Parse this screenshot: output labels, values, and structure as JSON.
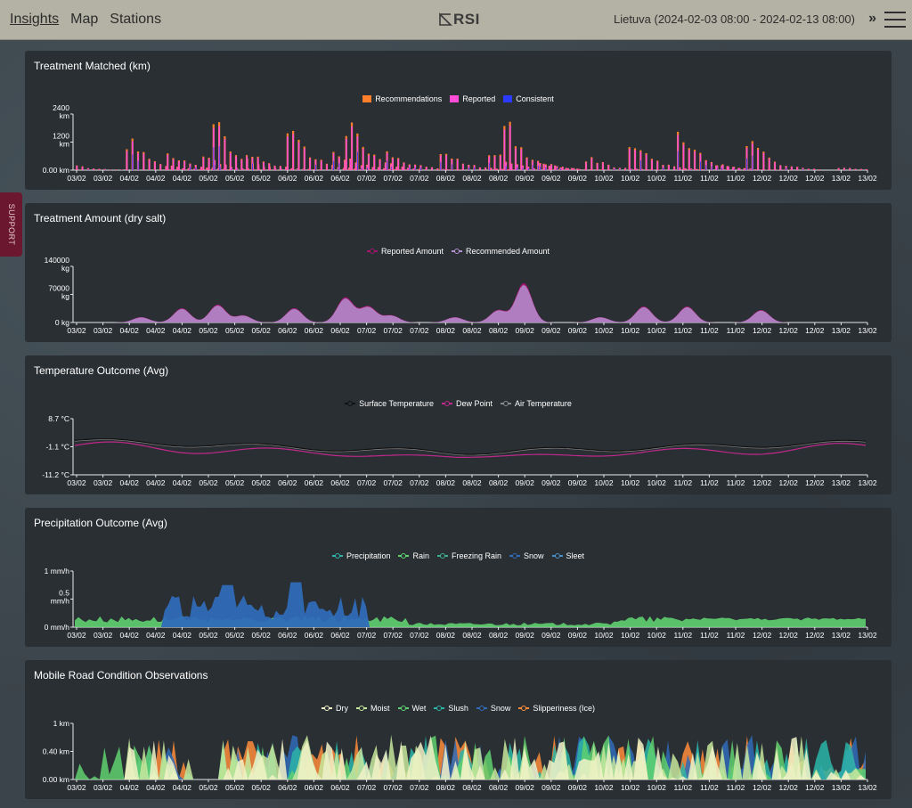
{
  "topbar": {
    "nav": [
      {
        "label": "Insights",
        "active": true
      },
      {
        "label": "Map",
        "active": false
      },
      {
        "label": "Stations",
        "active": false
      }
    ],
    "logo_text": "RSI",
    "region": "Lietuva (2024-02-03 08:00 - 2024-02-13 08:00)",
    "expand_glyph": "»"
  },
  "support_label": "SUPPORT",
  "date_ticks": [
    "03/02",
    "03/02",
    "04/02",
    "04/02",
    "04/02",
    "05/02",
    "05/02",
    "05/02",
    "06/02",
    "06/02",
    "06/02",
    "07/02",
    "07/02",
    "07/02",
    "08/02",
    "08/02",
    "08/02",
    "09/02",
    "09/02",
    "09/02",
    "10/02",
    "10/02",
    "10/02",
    "11/02",
    "11/02",
    "11/02",
    "12/02",
    "12/02",
    "12/02",
    "13/02",
    "13/02"
  ],
  "panels": [
    {
      "title": "Treatment Matched (km)",
      "legend": [
        {
          "label": "Recommendations",
          "color": "#ff7f2a",
          "style": "box"
        },
        {
          "label": "Reported",
          "color": "#ff4dd8",
          "style": "box"
        },
        {
          "label": "Consistent",
          "color": "#2a3aff",
          "style": "box"
        }
      ],
      "y_ticks": [
        [
          "2400",
          "km"
        ],
        [
          "1200",
          "km"
        ],
        [
          "0.00 km"
        ]
      ],
      "chart_data": {
        "type": "bar",
        "ylim": [
          0,
          2400
        ],
        "y_unit": "km",
        "series": [
          {
            "name": "Recommendations",
            "color": "#ff7f2a"
          },
          {
            "name": "Reported",
            "color": "#ff4dd8"
          },
          {
            "name": "Consistent",
            "color": "#2a3aff"
          }
        ],
        "peaks": [
          [
            0.2,
            300
          ],
          [
            2.6,
            1400
          ],
          [
            4.2,
            800
          ],
          [
            5.6,
            600
          ],
          [
            6.0,
            2200
          ],
          [
            7.3,
            900
          ],
          [
            8.9,
            1800
          ],
          [
            10.7,
            950
          ],
          [
            11.2,
            2100
          ],
          [
            12.8,
            900
          ],
          [
            14.9,
            1000
          ],
          [
            16.8,
            900
          ],
          [
            17.4,
            2100
          ],
          [
            18.8,
            400
          ],
          [
            20.6,
            600
          ],
          [
            22.3,
            1300
          ],
          [
            24.2,
            1800
          ],
          [
            25.7,
            300
          ],
          [
            26.9,
            1400
          ],
          [
            30.5,
            150
          ]
        ]
      }
    },
    {
      "title": "Treatment Amount (dry salt)",
      "legend": [
        {
          "label": "Reported Amount",
          "color": "#a0166e",
          "style": "line"
        },
        {
          "label": "Recommended Amount",
          "color": "#b48fd0",
          "style": "line"
        }
      ],
      "y_ticks": [
        [
          "140000",
          "kg"
        ],
        [
          "70000",
          "kg"
        ],
        [
          "0 kg"
        ]
      ],
      "chart_data": {
        "type": "area",
        "ylim": [
          0,
          140000
        ],
        "y_unit": "kg",
        "series": [
          {
            "name": "Reported Amount",
            "color": "#a0166e"
          },
          {
            "name": "Recommended Amount",
            "color": "#b48fd0"
          }
        ],
        "peaks": [
          [
            2.6,
            15000
          ],
          [
            4.2,
            40000
          ],
          [
            5.6,
            50000
          ],
          [
            6.6,
            20000
          ],
          [
            8.6,
            40000
          ],
          [
            10.6,
            70000
          ],
          [
            11.5,
            45000
          ],
          [
            12.4,
            20000
          ],
          [
            14.9,
            15000
          ],
          [
            16.6,
            35000
          ],
          [
            17.6,
            110000
          ],
          [
            20.6,
            15000
          ],
          [
            22.3,
            45000
          ],
          [
            24.0,
            45000
          ],
          [
            26.9,
            35000
          ]
        ]
      }
    },
    {
      "title": "Temperature Outcome (Avg)",
      "legend": [
        {
          "label": "Surface Temperature",
          "color": "#111111",
          "style": "line"
        },
        {
          "label": "Dew Point",
          "color": "#c0288c",
          "style": "line"
        },
        {
          "label": "Air Temperature",
          "color": "#8a8a8a",
          "style": "line"
        }
      ],
      "y_ticks": [
        [
          "8.7 °C"
        ],
        [
          "-1.1 °C"
        ],
        [
          "-11.2 °C"
        ]
      ],
      "chart_data": {
        "type": "line",
        "ylim": [
          -11.2,
          8.7
        ],
        "y_unit": "°C",
        "series": [
          {
            "name": "Surface Temperature",
            "color": "#111111"
          },
          {
            "name": "Dew Point",
            "color": "#c0288c"
          },
          {
            "name": "Air Temperature",
            "color": "#8a8a8a"
          }
        ]
      }
    },
    {
      "title": "Precipitation Outcome (Avg)",
      "legend": [
        {
          "label": "Precipitation",
          "color": "#2ab5a8",
          "style": "line"
        },
        {
          "label": "Rain",
          "color": "#5fd070",
          "style": "line"
        },
        {
          "label": "Freezing Rain",
          "color": "#3fae8a",
          "style": "line"
        },
        {
          "label": "Snow",
          "color": "#2f6bb8",
          "style": "line"
        },
        {
          "label": "Sleet",
          "color": "#4a90c8",
          "style": "line"
        }
      ],
      "y_ticks": [
        [
          "1 mm/h"
        ],
        [
          "0.5",
          "mm/h"
        ],
        [
          "0 mm/h"
        ]
      ],
      "chart_data": {
        "type": "area",
        "ylim": [
          0,
          1
        ],
        "y_unit": "mm/h",
        "series": [
          {
            "name": "Rain",
            "color": "#5fd070"
          },
          {
            "name": "Snow",
            "color": "#2f6bb8"
          }
        ]
      }
    },
    {
      "title": "Mobile Road Condition Observations",
      "legend": [
        {
          "label": "Dry",
          "color": "#f2f2c8",
          "style": "line"
        },
        {
          "label": "Moist",
          "color": "#c7e89c",
          "style": "line"
        },
        {
          "label": "Wet",
          "color": "#5fd070",
          "style": "line"
        },
        {
          "label": "Slush",
          "color": "#2ab5a8",
          "style": "line"
        },
        {
          "label": "Snow",
          "color": "#2f6bb8",
          "style": "line"
        },
        {
          "label": "Slipperiness (Ice)",
          "color": "#ff8c3a",
          "style": "line"
        }
      ],
      "y_ticks": [
        [
          "1 km"
        ],
        [
          "0.40 km"
        ],
        [
          "0.00 km"
        ]
      ],
      "chart_data": {
        "type": "area",
        "ylim": [
          0,
          1
        ],
        "y_unit": "km",
        "series": [
          {
            "name": "Dry",
            "color": "#f2f2c8"
          },
          {
            "name": "Moist",
            "color": "#c7e89c"
          },
          {
            "name": "Wet",
            "color": "#5fd070"
          },
          {
            "name": "Slush",
            "color": "#2ab5a8"
          },
          {
            "name": "Snow",
            "color": "#2f6bb8"
          },
          {
            "name": "Slipperiness (Ice)",
            "color": "#ff8c3a"
          }
        ]
      }
    }
  ]
}
